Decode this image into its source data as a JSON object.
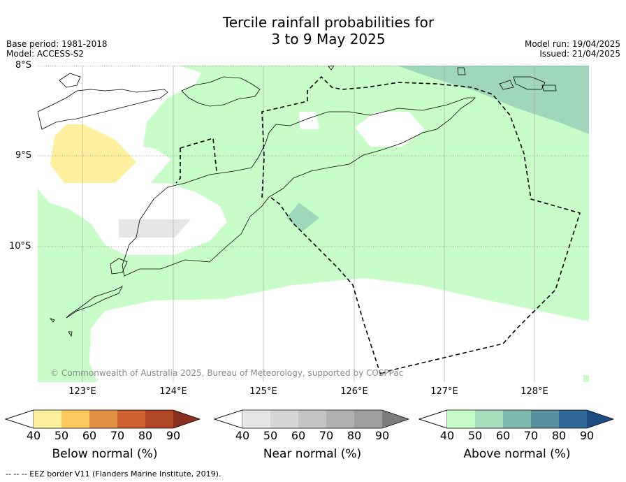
{
  "header": {
    "title_line1": "Tercile rainfall probabilities for",
    "title_line2": "3 to 9 May 2025",
    "left_line1": "Base period: 1981-2018",
    "left_line2": "Model: ACCESS-S2",
    "right_line1": "Model run: 19/04/2025",
    "right_line2": "Issued: 21/04/2025"
  },
  "map": {
    "lat_labels": [
      "8°S",
      "9°S",
      "10°S"
    ],
    "lon_labels": [
      "123°E",
      "124°E",
      "125°E",
      "126°E",
      "127°E",
      "128°E"
    ],
    "copyright": "© Commonwealth of Australia 2025, Bureau of Meteorology, supported by COSPPac",
    "colors": {
      "ocean_above_40": "#c8fcc8",
      "above_50": "#a0d7bb",
      "below_40": "#fff0a0",
      "near_40": "#e6e6e6",
      "white": "#ffffff"
    }
  },
  "colorbars": [
    {
      "label": "Below normal (%)",
      "ticks": [
        "40",
        "50",
        "60",
        "70",
        "80",
        "90"
      ],
      "colors": [
        "#fff0a0",
        "#fdc860",
        "#e09040",
        "#cc6030",
        "#b04828",
        "#8a3020"
      ]
    },
    {
      "label": "Near normal (%)",
      "ticks": [
        "40",
        "50",
        "60",
        "70",
        "80",
        "90"
      ],
      "colors": [
        "#e6e6e6",
        "#d6d6d6",
        "#c4c4c4",
        "#b0b0b0",
        "#9e9e9e",
        "#7c7c7c"
      ]
    },
    {
      "label": "Above normal (%)",
      "ticks": [
        "40",
        "50",
        "60",
        "70",
        "80",
        "90"
      ],
      "colors": [
        "#c8fcc8",
        "#a8dcbc",
        "#7fb8b0",
        "#5890a0",
        "#306898",
        "#1e4c80"
      ]
    }
  ],
  "footnote": "-- -- -- EEZ border V11 (Flanders Marine Institute, 2019)."
}
